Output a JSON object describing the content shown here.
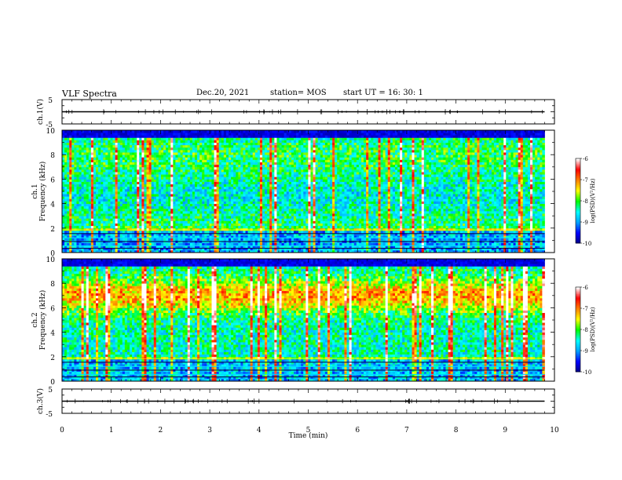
{
  "header": {
    "title": "VLF Spectra",
    "date": "Dec.20, 2021",
    "station": "station= MOS",
    "start": "start  UT =   16: 30: 1"
  },
  "chart_data": [
    {
      "type": "line",
      "panel": "ch1-signal",
      "ylabel": "ch.1(V)",
      "ylim": [
        -5,
        5
      ],
      "y_ticks": [
        "5",
        "-5"
      ],
      "x": [
        0,
        9.8
      ],
      "values": [
        0,
        0
      ],
      "grid": false
    },
    {
      "type": "heatmap",
      "panel": "ch1-spectrogram",
      "ylabel": "ch.1\nFrequency (kHz)",
      "xlim": [
        0,
        10
      ],
      "ylim": [
        0,
        10
      ],
      "y_ticks": [
        "0",
        "2",
        "4",
        "6",
        "8",
        "10"
      ],
      "data_xlim": [
        0,
        9.8
      ],
      "colorbar": {
        "label": "log(PSD)(V²/Hz)",
        "range": [
          -10,
          -6
        ],
        "ticks": [
          "-6",
          "-7",
          "-8",
          "-9",
          "-10"
        ],
        "colors": [
          "#000080",
          "#0000ff",
          "#00a0ff",
          "#00ffff",
          "#00ff00",
          "#ffff00",
          "#ff8000",
          "#ff0000",
          "#ffffff"
        ]
      }
    },
    {
      "type": "heatmap",
      "panel": "ch2-spectrogram",
      "ylabel": "ch.2\nFrequency (kHz)",
      "xlim": [
        0,
        10
      ],
      "ylim": [
        0,
        10
      ],
      "y_ticks": [
        "0",
        "2",
        "4",
        "6",
        "8",
        "10"
      ],
      "data_xlim": [
        0,
        9.8
      ],
      "colorbar": {
        "label": "log(PSD)(V²/Hz)",
        "range": [
          -10,
          -6
        ],
        "ticks": [
          "-6",
          "-7",
          "-8",
          "-9",
          "-10"
        ],
        "colors": [
          "#000080",
          "#0000ff",
          "#00a0ff",
          "#00ffff",
          "#00ff00",
          "#ffff00",
          "#ff8000",
          "#ff0000",
          "#ffffff"
        ]
      }
    },
    {
      "type": "line",
      "panel": "ch3-signal",
      "ylabel": "ch.3(V)",
      "ylim": [
        -5,
        5
      ],
      "y_ticks": [
        "5",
        "-5"
      ],
      "x": [
        0,
        9.8
      ],
      "values": [
        0,
        0
      ],
      "grid": false,
      "xlabel": "Time (min)",
      "xlim": [
        0,
        10
      ],
      "x_ticks": [
        "0",
        "1",
        "2",
        "3",
        "4",
        "5",
        "6",
        "7",
        "8",
        "9",
        "10"
      ]
    }
  ]
}
